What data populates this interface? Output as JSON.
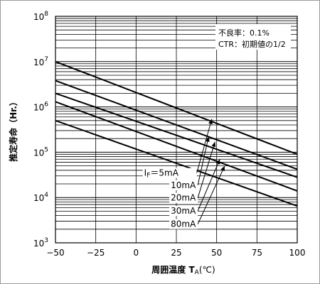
{
  "chart_data": {
    "type": "line",
    "ylabel": "推定寿命（Hr.）",
    "xlabel_main": "周囲温度 T",
    "xlabel_sub": "A",
    "xlabel_unit": "(℃)",
    "xlim": [
      -50,
      100
    ],
    "ylim_exponents": [
      3,
      8
    ],
    "y_scale": "log",
    "grid": "horizontal minor gridlines",
    "x_ticks": [
      {
        "value": -50,
        "label": "−50"
      },
      {
        "value": -25,
        "label": "−25"
      },
      {
        "value": 0,
        "label": "0"
      },
      {
        "value": 25,
        "label": "25"
      },
      {
        "value": 50,
        "label": "50"
      },
      {
        "value": 75,
        "label": "75"
      },
      {
        "value": 100,
        "label": "100"
      }
    ],
    "y_ticks": [
      {
        "exp": 3,
        "base": "10",
        "sup": "3"
      },
      {
        "exp": 4,
        "base": "10",
        "sup": "4"
      },
      {
        "exp": 5,
        "base": "10",
        "sup": "5"
      },
      {
        "exp": 6,
        "base": "10",
        "sup": "6"
      },
      {
        "exp": 7,
        "base": "10",
        "sup": "7"
      },
      {
        "exp": 8,
        "base": "10",
        "sup": "8"
      }
    ],
    "annotation_lines": [
      "不良率：0.1%",
      "CTR：初期値の1/2"
    ],
    "series": [
      {
        "name": "IF=5mA",
        "x": [
          -50,
          100
        ],
        "y": [
          10000000,
          90000
        ],
        "label_parts": {
          "main": "I",
          "sub": "F",
          "rest": "＝5mA"
        },
        "label_x": 5,
        "label_ylog": 4.48,
        "arrow_to": [
          47,
          540000
        ]
      },
      {
        "name": "10mA",
        "x": [
          -50,
          100
        ],
        "y": [
          3800000,
          42000
        ],
        "label_parts": {
          "main": "",
          "sub": "",
          "rest": "10mA"
        },
        "label_x": 18,
        "label_ylog": 4.21,
        "arrow_to": [
          45,
          220000
        ]
      },
      {
        "name": "20mA",
        "x": [
          -50,
          100
        ],
        "y": [
          1300000,
          14000
        ],
        "label_parts": {
          "main": "",
          "sub": "",
          "rest": "20mA"
        },
        "label_x": 18,
        "label_ylog": 3.93,
        "arrow_to": [
          49,
          170000
        ]
      },
      {
        "name": "30mA",
        "x": [
          -50,
          100
        ],
        "y": [
          500000,
          6500
        ],
        "label_parts": {
          "main": "",
          "sub": "",
          "rest": "30mA"
        },
        "label_x": 18,
        "label_ylog": 3.64,
        "arrow_to": [
          52,
          70000
        ]
      },
      {
        "name": "80mA",
        "x": [
          -50,
          100
        ],
        "y": [
          2000000,
          28000
        ],
        "label_parts": {
          "main": "",
          "sub": "",
          "rest": "80mA"
        },
        "label_x": 18,
        "label_ylog": 3.35,
        "arrow_to": [
          55,
          50000
        ]
      }
    ]
  }
}
